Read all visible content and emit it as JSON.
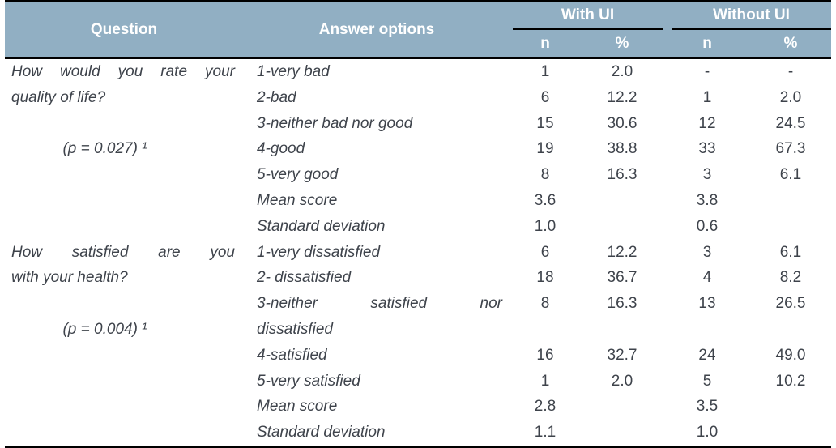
{
  "table": {
    "header": {
      "question": "Question",
      "answer_options": "Answer options",
      "group_with": "With UI",
      "group_without": "Without UI",
      "with_n": "n",
      "with_pct": "%",
      "without_n": "n",
      "without_pct": "%"
    },
    "colors": {
      "header_bg": "#91AFC3",
      "header_text": "#FFFFFF",
      "body_text": "#3E434B",
      "border": "#000000"
    },
    "questions": [
      {
        "text": "How would you rate your quality of life?",
        "p_value": "(p = 0.027) ¹"
      },
      {
        "text": "How satisfied are you with your health?",
        "p_value": "(p = 0.004) ¹"
      }
    ],
    "rows": [
      {
        "q": "How would you rate your",
        "a": "1-very bad",
        "wn": "1",
        "wp": "2.0",
        "on": "-",
        "op": "-"
      },
      {
        "q": "quality of life?",
        "a": "2-bad",
        "wn": "6",
        "wp": "12.2",
        "on": "1",
        "op": "2.0"
      },
      {
        "q": "",
        "a": "3-neither bad nor good",
        "wn": "15",
        "wp": "30.6",
        "on": "12",
        "op": "24.5"
      },
      {
        "q": "(p = 0.027) ¹",
        "a": "4-good",
        "wn": "19",
        "wp": "38.8",
        "on": "33",
        "op": "67.3"
      },
      {
        "q": "",
        "a": "5-very good",
        "wn": "8",
        "wp": "16.3",
        "on": "3",
        "op": "6.1"
      },
      {
        "q": "",
        "a": "Mean score",
        "wn": "3.6",
        "wp": "",
        "on": "3.8",
        "op": ""
      },
      {
        "q": "",
        "a": "Standard deviation",
        "wn": "1.0",
        "wp": "",
        "on": "0.6",
        "op": ""
      },
      {
        "q": "How satisfied are you",
        "a": "1-very dissatisfied",
        "wn": "6",
        "wp": "12.2",
        "on": "3",
        "op": "6.1"
      },
      {
        "q": "with your health?",
        "a": "2- dissatisfied",
        "wn": "18",
        "wp": "36.7",
        "on": "4",
        "op": "8.2"
      },
      {
        "q": "",
        "a": "3-neither satisfied nor",
        "wn": "8",
        "wp": "16.3",
        "on": "13",
        "op": "26.5"
      },
      {
        "q": "(p = 0.004) ¹",
        "a": "dissatisfied",
        "wn": "",
        "wp": "",
        "on": "",
        "op": ""
      },
      {
        "q": "",
        "a": "4-satisfied",
        "wn": "16",
        "wp": "32.7",
        "on": "24",
        "op": "49.0"
      },
      {
        "q": "",
        "a": "5-very satisfied",
        "wn": "1",
        "wp": "2.0",
        "on": "5",
        "op": "10.2"
      },
      {
        "q": "",
        "a": "Mean score",
        "wn": "2.8",
        "wp": "",
        "on": "3.5",
        "op": ""
      },
      {
        "q": "",
        "a": "Standard deviation",
        "wn": "1.1",
        "wp": "",
        "on": "1.0",
        "op": ""
      }
    ]
  }
}
